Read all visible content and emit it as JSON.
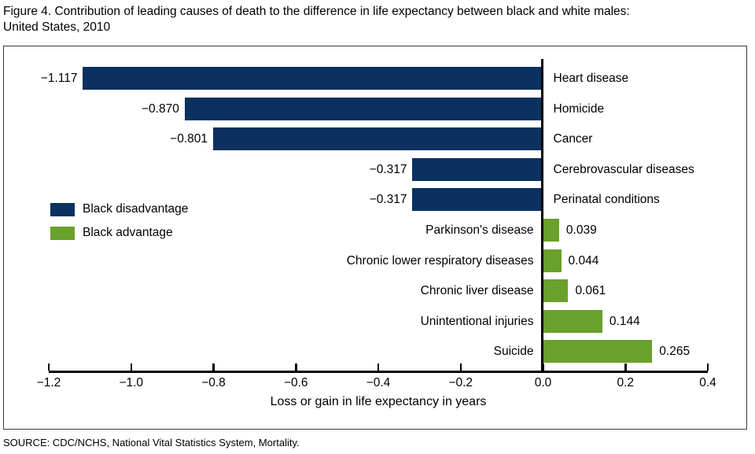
{
  "title": {
    "line1": "Figure 4. Contribution of leading causes of death to the difference in life expectancy between black and white males:",
    "line2": "United States, 2010"
  },
  "legend": {
    "disadvantage": {
      "label": "Black disadvantage",
      "color": "#0a315f"
    },
    "advantage": {
      "label": "Black advantage",
      "color": "#6aa02c"
    }
  },
  "chart_data": {
    "type": "bar",
    "orientation": "horizontal",
    "title": "Figure 4. Contribution of leading causes of death to the difference in life expectancy between black and white males: United States, 2010",
    "xlabel": "Loss or gain in life expectancy in years",
    "xlim": [
      -1.2,
      0.4
    ],
    "xticks": [
      "−1.2",
      "−1.0",
      "−0.8",
      "−0.6",
      "−0.4",
      "−0.2",
      "0.0",
      "0.2",
      "0.4"
    ],
    "grid": false,
    "legend_position": "middle-left",
    "categories": [
      "Heart disease",
      "Homicide",
      "Cancer",
      "Cerebrovascular diseases",
      "Perinatal conditions",
      "Parkinson's disease",
      "Chronic lower respiratory diseases",
      "Chronic liver disease",
      "Unintentional injuries",
      "Suicide"
    ],
    "values": [
      -1.117,
      -0.87,
      -0.801,
      -0.317,
      -0.317,
      0.039,
      0.044,
      0.061,
      0.144,
      0.265
    ],
    "value_labels": [
      "−1.117",
      "−0.870",
      "−0.801",
      "−0.317",
      "−0.317",
      "0.039",
      "0.044",
      "0.061",
      "0.144",
      "0.265"
    ],
    "series_colors": {
      "negative": "#0a315f",
      "positive": "#6aa02c"
    }
  },
  "source": "SOURCE: CDC/NCHS, National Vital Statistics System, Mortality."
}
